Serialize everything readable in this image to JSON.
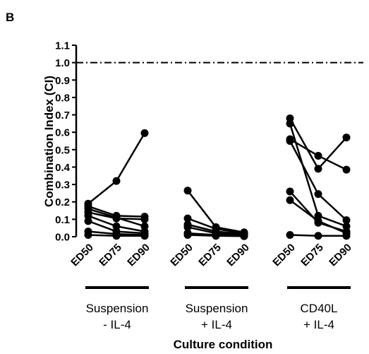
{
  "panel_label": "B",
  "chart_data": {
    "type": "scatter",
    "ylabel": "Combination Index (CI)",
    "xlabel": "Culture condition",
    "ylim": [
      0,
      1.1
    ],
    "y_ticks": [
      "0.0",
      "0.1",
      "0.2",
      "0.3",
      "0.4",
      "0.5",
      "0.6",
      "0.7",
      "0.8",
      "0.9",
      "1.0",
      "1.1"
    ],
    "reference_line": {
      "y": 1.0,
      "style": "dash-dot"
    },
    "categories": [
      "ED50",
      "ED75",
      "ED90"
    ],
    "groups": [
      {
        "label_line1": "Suspension",
        "label_line2": "- IL-4",
        "series": [
          {
            "values": [
              0.19,
              0.32,
              0.595
            ]
          },
          {
            "values": [
              0.175,
              0.12,
              0.115
            ]
          },
          {
            "values": [
              0.16,
              0.11,
              0.06
            ]
          },
          {
            "values": [
              0.14,
              0.105,
              0.1
            ]
          },
          {
            "values": [
              0.12,
              0.06,
              0.03
            ]
          },
          {
            "values": [
              0.09,
              0.03,
              0.02
            ]
          },
          {
            "values": [
              0.03,
              0.015,
              0.01
            ]
          },
          {
            "values": [
              0.01,
              0.005,
              0.005
            ]
          }
        ]
      },
      {
        "label_line1": "Suspension",
        "label_line2": "+ IL-4",
        "series": [
          {
            "values": [
              0.265,
              0.055,
              0.025
            ]
          },
          {
            "values": [
              0.105,
              0.045,
              0.02
            ]
          },
          {
            "values": [
              0.07,
              0.03,
              0.015
            ]
          },
          {
            "values": [
              0.055,
              0.02,
              0.01
            ]
          },
          {
            "values": [
              0.02,
              0.01,
              0.005
            ]
          },
          {
            "values": [
              0.01,
              0.005,
              0.003
            ]
          }
        ]
      },
      {
        "label_line1": "CD40L",
        "label_line2": "+ IL-4",
        "series": [
          {
            "values": [
              0.68,
              0.39,
              0.57
            ]
          },
          {
            "values": [
              0.65,
              0.12,
              0.06
            ]
          },
          {
            "values": [
              0.56,
              0.465,
              0.385
            ]
          },
          {
            "values": [
              0.55,
              0.245,
              0.095
            ]
          },
          {
            "values": [
              0.26,
              0.08,
              0.03
            ]
          },
          {
            "values": [
              0.21,
              0.09,
              0.02
            ]
          },
          {
            "values": [
              0.01,
              0.005,
              0.005
            ]
          }
        ]
      }
    ]
  }
}
